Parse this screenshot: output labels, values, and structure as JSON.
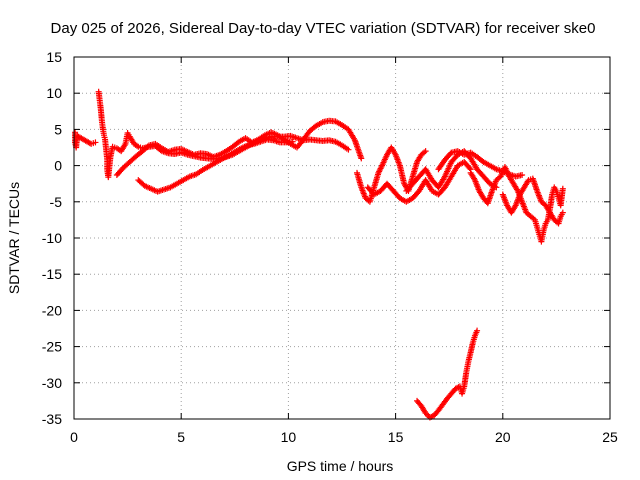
{
  "chart_data": {
    "type": "scatter",
    "title": "Day 025 of 2026, Sidereal Day-to-day VTEC variation (SDTVAR) for receiver ske0",
    "xlabel": "GPS time / hours",
    "ylabel": "SDTVAR / TECUs",
    "xlim": [
      0,
      25
    ],
    "ylim": [
      -35,
      15
    ],
    "xticks": [
      "0",
      "5",
      "10",
      "15",
      "20",
      "25"
    ],
    "yticks": [
      "15",
      "10",
      "5",
      "0",
      "-5",
      "-10",
      "-15",
      "-20",
      "-25",
      "-30",
      "-35"
    ],
    "grid": true,
    "marker": "+",
    "color": "#ff0000",
    "series": [
      {
        "name": "SDTVAR",
        "points": [
          [
            0.05,
            4.6
          ],
          [
            0.05,
            3.2
          ],
          [
            0.1,
            2.5
          ],
          [
            0.15,
            4.1
          ],
          [
            0.8,
            3.0
          ],
          [
            1.0,
            3.2
          ],
          [
            1.15,
            10.2
          ],
          [
            1.2,
            9.0
          ],
          [
            1.25,
            7.8
          ],
          [
            1.3,
            6.2
          ],
          [
            1.35,
            5.0
          ],
          [
            1.4,
            4.2
          ],
          [
            1.45,
            3.6
          ],
          [
            1.5,
            2.2
          ],
          [
            1.55,
            0.8
          ],
          [
            1.55,
            -0.6
          ],
          [
            1.6,
            -1.6
          ],
          [
            1.7,
            1.2
          ],
          [
            1.8,
            2.6
          ],
          [
            2.0,
            2.4
          ],
          [
            2.2,
            2.0
          ],
          [
            2.4,
            3.0
          ],
          [
            2.5,
            4.5
          ],
          [
            2.6,
            4.0
          ],
          [
            2.8,
            3.0
          ],
          [
            3.0,
            2.6
          ],
          [
            3.2,
            2.4
          ],
          [
            3.5,
            2.6
          ],
          [
            3.8,
            2.7
          ],
          [
            4.1,
            2.0
          ],
          [
            4.4,
            1.7
          ],
          [
            4.7,
            1.6
          ],
          [
            5.0,
            1.8
          ],
          [
            5.3,
            1.5
          ],
          [
            5.6,
            1.3
          ],
          [
            5.9,
            1.1
          ],
          [
            6.2,
            1.0
          ],
          [
            6.5,
            0.9
          ],
          [
            6.8,
            1.0
          ],
          [
            7.1,
            1.2
          ],
          [
            7.4,
            1.5
          ],
          [
            7.7,
            2.0
          ],
          [
            8.0,
            2.5
          ],
          [
            8.3,
            3.0
          ],
          [
            8.6,
            3.4
          ],
          [
            8.9,
            3.8
          ],
          [
            9.2,
            4.0
          ],
          [
            9.5,
            4.0
          ],
          [
            9.8,
            4.0
          ],
          [
            10.1,
            4.1
          ],
          [
            10.4,
            3.8
          ],
          [
            10.7,
            3.5
          ],
          [
            11.0,
            3.6
          ],
          [
            11.3,
            3.5
          ],
          [
            11.6,
            3.4
          ],
          [
            11.9,
            3.5
          ],
          [
            12.2,
            3.3
          ],
          [
            12.5,
            2.8
          ],
          [
            12.8,
            2.2
          ],
          [
            2.0,
            -1.3
          ],
          [
            2.3,
            -0.3
          ],
          [
            2.6,
            0.5
          ],
          [
            2.9,
            1.3
          ],
          [
            3.2,
            2.0
          ],
          [
            3.5,
            2.8
          ],
          [
            3.8,
            3.0
          ],
          [
            4.1,
            2.4
          ],
          [
            4.4,
            1.9
          ],
          [
            4.7,
            2.2
          ],
          [
            5.0,
            2.3
          ],
          [
            5.3,
            1.9
          ],
          [
            5.6,
            1.5
          ],
          [
            5.9,
            1.7
          ],
          [
            6.2,
            1.6
          ],
          [
            6.5,
            1.2
          ],
          [
            6.8,
            1.5
          ],
          [
            7.1,
            2.0
          ],
          [
            7.4,
            2.6
          ],
          [
            7.7,
            3.3
          ],
          [
            8.0,
            3.8
          ],
          [
            8.3,
            3.2
          ],
          [
            8.6,
            3.6
          ],
          [
            8.9,
            4.2
          ],
          [
            9.2,
            4.6
          ],
          [
            9.5,
            4.2
          ],
          [
            9.8,
            3.6
          ],
          [
            10.1,
            3.0
          ],
          [
            10.4,
            2.5
          ],
          [
            10.7,
            3.6
          ],
          [
            11.0,
            4.8
          ],
          [
            11.3,
            5.5
          ],
          [
            11.6,
            6.0
          ],
          [
            11.9,
            6.2
          ],
          [
            12.2,
            6.1
          ],
          [
            12.5,
            5.6
          ],
          [
            12.8,
            5.0
          ],
          [
            13.1,
            3.5
          ],
          [
            13.4,
            1.0
          ],
          [
            3.0,
            -2.0
          ],
          [
            3.3,
            -2.8
          ],
          [
            3.6,
            -3.2
          ],
          [
            3.9,
            -3.6
          ],
          [
            4.2,
            -3.3
          ],
          [
            4.5,
            -3.0
          ],
          [
            4.8,
            -2.5
          ],
          [
            5.1,
            -2.0
          ],
          [
            5.4,
            -1.5
          ],
          [
            5.7,
            -1.2
          ],
          [
            6.0,
            -0.6
          ],
          [
            6.3,
            -0.1
          ],
          [
            6.6,
            0.4
          ],
          [
            6.9,
            0.9
          ],
          [
            7.2,
            1.4
          ],
          [
            7.5,
            1.9
          ],
          [
            7.8,
            2.4
          ],
          [
            8.1,
            2.8
          ],
          [
            8.4,
            3.0
          ],
          [
            8.7,
            3.3
          ],
          [
            9.0,
            3.6
          ],
          [
            9.3,
            3.5
          ],
          [
            9.6,
            3.2
          ],
          [
            9.9,
            3.2
          ],
          [
            10.2,
            3.3
          ],
          [
            13.2,
            -1.0
          ],
          [
            13.4,
            -3.0
          ],
          [
            13.6,
            -4.5
          ],
          [
            13.8,
            -5.0
          ],
          [
            14.0,
            -3.0
          ],
          [
            14.2,
            -1.0
          ],
          [
            14.4,
            0.2
          ],
          [
            14.6,
            1.5
          ],
          [
            14.8,
            2.5
          ],
          [
            15.0,
            1.5
          ],
          [
            15.2,
            0.0
          ],
          [
            15.4,
            -2.5
          ],
          [
            15.6,
            -3.5
          ],
          [
            15.8,
            -1.5
          ],
          [
            16.0,
            0.5
          ],
          [
            16.2,
            1.5
          ],
          [
            16.4,
            2.0
          ],
          [
            13.7,
            -3.0
          ],
          [
            14.0,
            -4.0
          ],
          [
            14.3,
            -3.5
          ],
          [
            14.6,
            -2.5
          ],
          [
            14.9,
            -3.5
          ],
          [
            15.2,
            -4.5
          ],
          [
            15.5,
            -5.0
          ],
          [
            15.8,
            -4.5
          ],
          [
            16.1,
            -3.5
          ],
          [
            16.4,
            -2.0
          ],
          [
            16.7,
            -3.5
          ],
          [
            17.0,
            -4.0
          ],
          [
            17.3,
            -3.0
          ],
          [
            17.6,
            -1.5
          ],
          [
            17.9,
            0.0
          ],
          [
            18.2,
            0.5
          ],
          [
            18.5,
            -0.5
          ],
          [
            15.5,
            -3.5
          ],
          [
            15.8,
            -2.5
          ],
          [
            16.1,
            -1.5
          ],
          [
            16.4,
            -0.5
          ],
          [
            16.7,
            -2.0
          ],
          [
            17.0,
            -3.0
          ],
          [
            17.3,
            -1.5
          ],
          [
            17.6,
            0.5
          ],
          [
            17.9,
            1.5
          ],
          [
            18.2,
            2.0
          ],
          [
            18.5,
            1.0
          ],
          [
            18.8,
            -0.5
          ],
          [
            19.1,
            -1.5
          ],
          [
            19.4,
            -2.5
          ],
          [
            19.7,
            -3.0
          ],
          [
            17.0,
            -0.5
          ],
          [
            17.3,
            0.8
          ],
          [
            17.6,
            1.8
          ],
          [
            17.9,
            2.0
          ],
          [
            18.2,
            1.5
          ],
          [
            18.5,
            1.8
          ],
          [
            18.8,
            1.2
          ],
          [
            19.1,
            0.5
          ],
          [
            19.4,
            0.0
          ],
          [
            19.7,
            -0.5
          ],
          [
            20.0,
            -0.8
          ],
          [
            20.3,
            -1.2
          ],
          [
            20.6,
            -1.5
          ],
          [
            20.9,
            -1.3
          ],
          [
            18.5,
            -1.0
          ],
          [
            18.7,
            -2.0
          ],
          [
            18.9,
            -3.5
          ],
          [
            19.1,
            -4.5
          ],
          [
            19.3,
            -5.2
          ],
          [
            19.5,
            -3.5
          ],
          [
            19.7,
            -2.0
          ],
          [
            19.9,
            -1.5
          ],
          [
            20.1,
            -0.2
          ],
          [
            20.3,
            -1.5
          ],
          [
            20.5,
            -2.5
          ],
          [
            20.7,
            -3.5
          ],
          [
            20.9,
            -5.0
          ],
          [
            21.1,
            -6.5
          ],
          [
            21.3,
            -7.0
          ],
          [
            21.5,
            -7.5
          ],
          [
            21.6,
            -8.5
          ],
          [
            21.7,
            -9.5
          ],
          [
            21.8,
            -10.5
          ],
          [
            21.9,
            -9.0
          ],
          [
            22.0,
            -8.0
          ],
          [
            22.1,
            -7.5
          ],
          [
            22.2,
            -6.0
          ],
          [
            22.3,
            -4.0
          ],
          [
            22.4,
            -3.0
          ],
          [
            22.5,
            -3.5
          ],
          [
            22.6,
            -4.5
          ],
          [
            22.7,
            -5.5
          ],
          [
            22.8,
            -3.2
          ],
          [
            20.0,
            -4.0
          ],
          [
            20.2,
            -5.5
          ],
          [
            20.4,
            -6.5
          ],
          [
            20.6,
            -5.5
          ],
          [
            20.8,
            -4.0
          ],
          [
            21.0,
            -3.0
          ],
          [
            21.2,
            -2.0
          ],
          [
            21.4,
            -1.8
          ],
          [
            21.6,
            -3.5
          ],
          [
            21.8,
            -5.0
          ],
          [
            22.0,
            -5.5
          ],
          [
            22.2,
            -6.5
          ],
          [
            22.4,
            -7.5
          ],
          [
            22.6,
            -8.0
          ],
          [
            22.7,
            -7.0
          ],
          [
            22.8,
            -6.5
          ],
          [
            16.0,
            -32.5
          ],
          [
            16.2,
            -33.2
          ],
          [
            16.4,
            -34.2
          ],
          [
            16.6,
            -34.8
          ],
          [
            16.8,
            -34.5
          ],
          [
            17.0,
            -33.8
          ],
          [
            17.2,
            -33.0
          ],
          [
            17.4,
            -32.2
          ],
          [
            17.6,
            -31.5
          ],
          [
            17.8,
            -30.8
          ],
          [
            18.0,
            -30.5
          ],
          [
            18.1,
            -31.5
          ],
          [
            18.2,
            -30.5
          ],
          [
            18.3,
            -28.5
          ],
          [
            18.4,
            -27.0
          ],
          [
            18.5,
            -25.8
          ],
          [
            18.6,
            -24.5
          ],
          [
            18.7,
            -23.5
          ],
          [
            18.8,
            -22.8
          ]
        ]
      }
    ]
  }
}
